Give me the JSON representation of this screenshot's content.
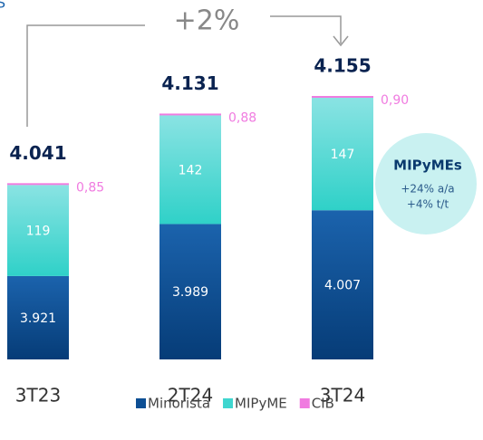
{
  "chart_data": {
    "type": "stacked_bar",
    "title": "S",
    "annotation": "+2%",
    "categories": [
      "3T23",
      "2T24",
      "3T24"
    ],
    "series": [
      {
        "name": "Minorista",
        "color": "#0d4f94",
        "values": [
          3921,
          3989,
          4007
        ],
        "value_labels": [
          "3.921",
          "3.989",
          "4.007"
        ]
      },
      {
        "name": "MIPyME",
        "color": "#3fd6cf",
        "values": [
          119,
          142,
          147
        ],
        "value_labels": [
          "119",
          "142",
          "147"
        ]
      },
      {
        "name": "CIB",
        "color": "#f07be0",
        "values": [
          0.85,
          0.88,
          0.9
        ],
        "value_labels": [
          "0,85",
          "0,88",
          "0,90"
        ]
      }
    ],
    "totals": {
      "values": [
        4041,
        4131,
        4155
      ],
      "value_labels": [
        "4.041",
        "4.131",
        "4.155"
      ]
    },
    "callout": {
      "title": "MIPyMEs",
      "lines": [
        "+24% a/a",
        "+4% t/t"
      ]
    }
  }
}
